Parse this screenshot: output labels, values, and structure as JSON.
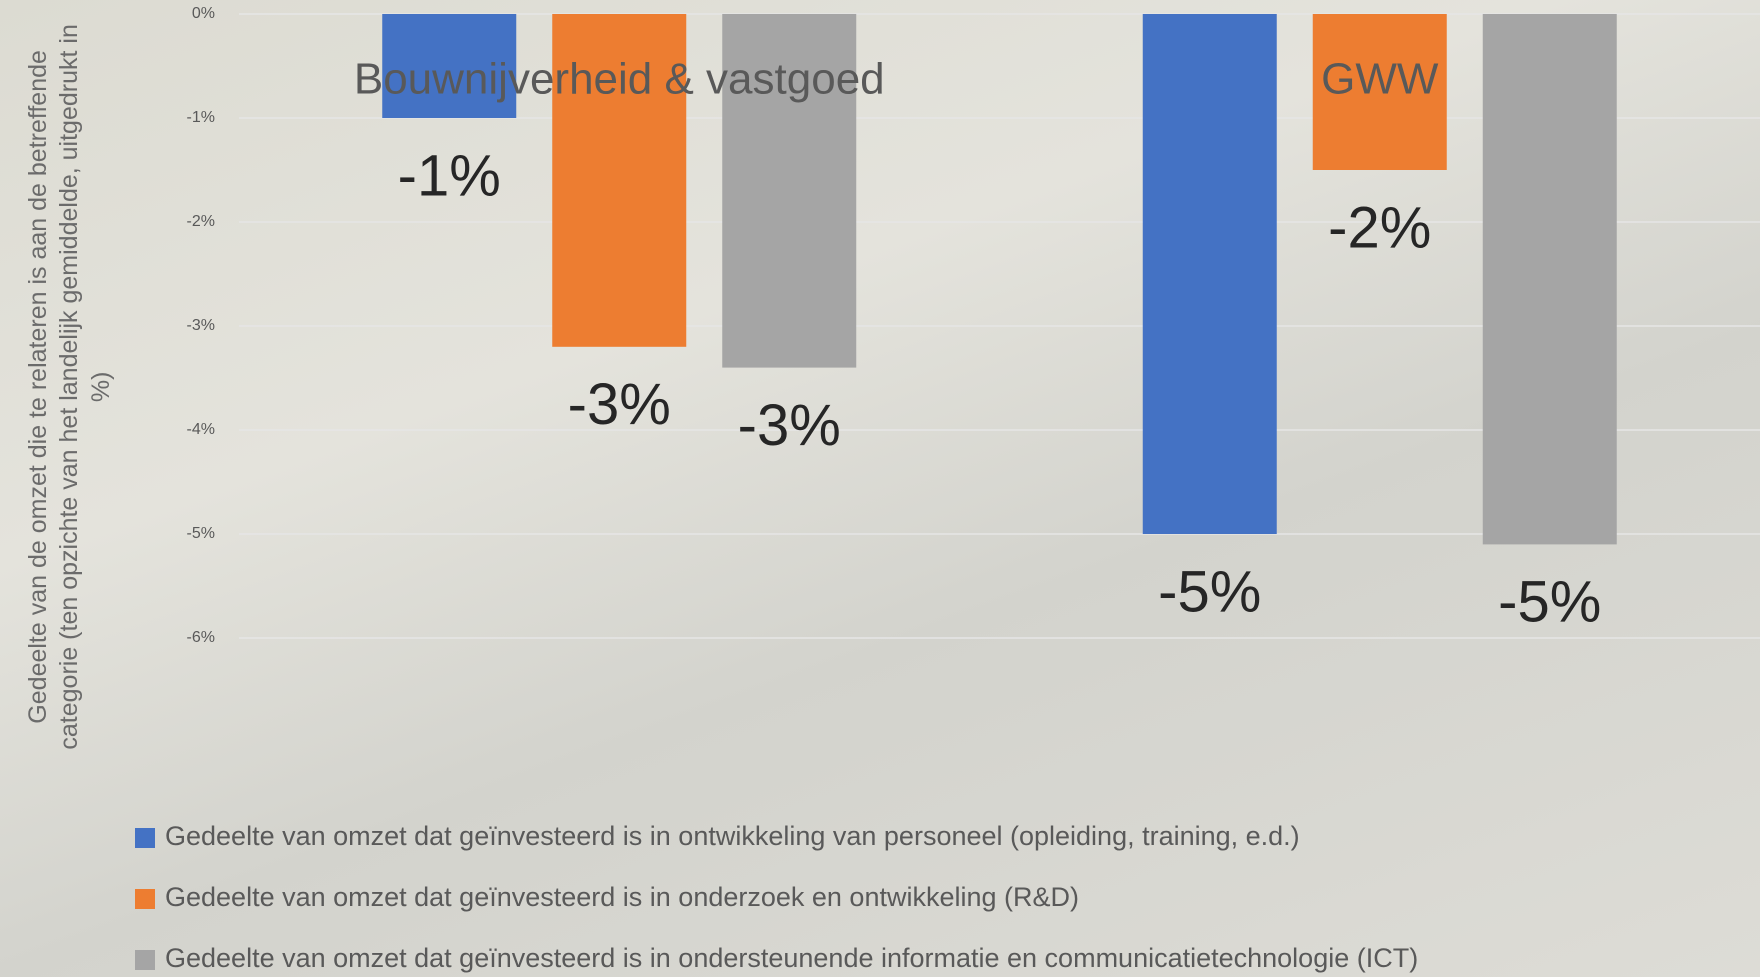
{
  "chart_data": {
    "type": "bar",
    "y_label": "Gedeelte van de omzet die te relateren is aan de betreffende categorie (ten opzichte van het landelijk gemiddelde, uitgedrukt in %)",
    "categories": [
      "Bouwnijverheid & vastgoed",
      "GWW"
    ],
    "series": [
      {
        "name": "Gedeelte van omzet dat geïnvesteerd is in ontwikkeling van personeel (opleiding, training, e.d.)",
        "color": "#4472c4",
        "values": [
          -1.0,
          -5.0
        ],
        "value_labels": [
          "-1%",
          "-5%"
        ]
      },
      {
        "name": "Gedeelte van omzet dat geïnvesteerd is in onderzoek en ontwikkeling (R&D)",
        "color": "#ed7d31",
        "values": [
          -3.2,
          -1.5
        ],
        "value_labels": [
          "-3%",
          "-2%"
        ]
      },
      {
        "name": "Gedeelte van omzet dat geïnvesteerd is in ondersteunende informatie en communicatietechnologie (ICT)",
        "color": "#a5a5a5",
        "values": [
          -3.4,
          -5.1
        ],
        "value_labels": [
          "-3%",
          "-5%"
        ]
      }
    ],
    "ylim": [
      -6,
      0
    ],
    "yticks": [
      {
        "value": 0,
        "label": "0%"
      },
      {
        "value": -1,
        "label": "-1%"
      },
      {
        "value": -2,
        "label": "-2%"
      },
      {
        "value": -3,
        "label": "-3%"
      },
      {
        "value": -4,
        "label": "-4%"
      },
      {
        "value": -5,
        "label": "-5%"
      },
      {
        "value": -6,
        "label": "-6%"
      }
    ],
    "grid": true
  }
}
